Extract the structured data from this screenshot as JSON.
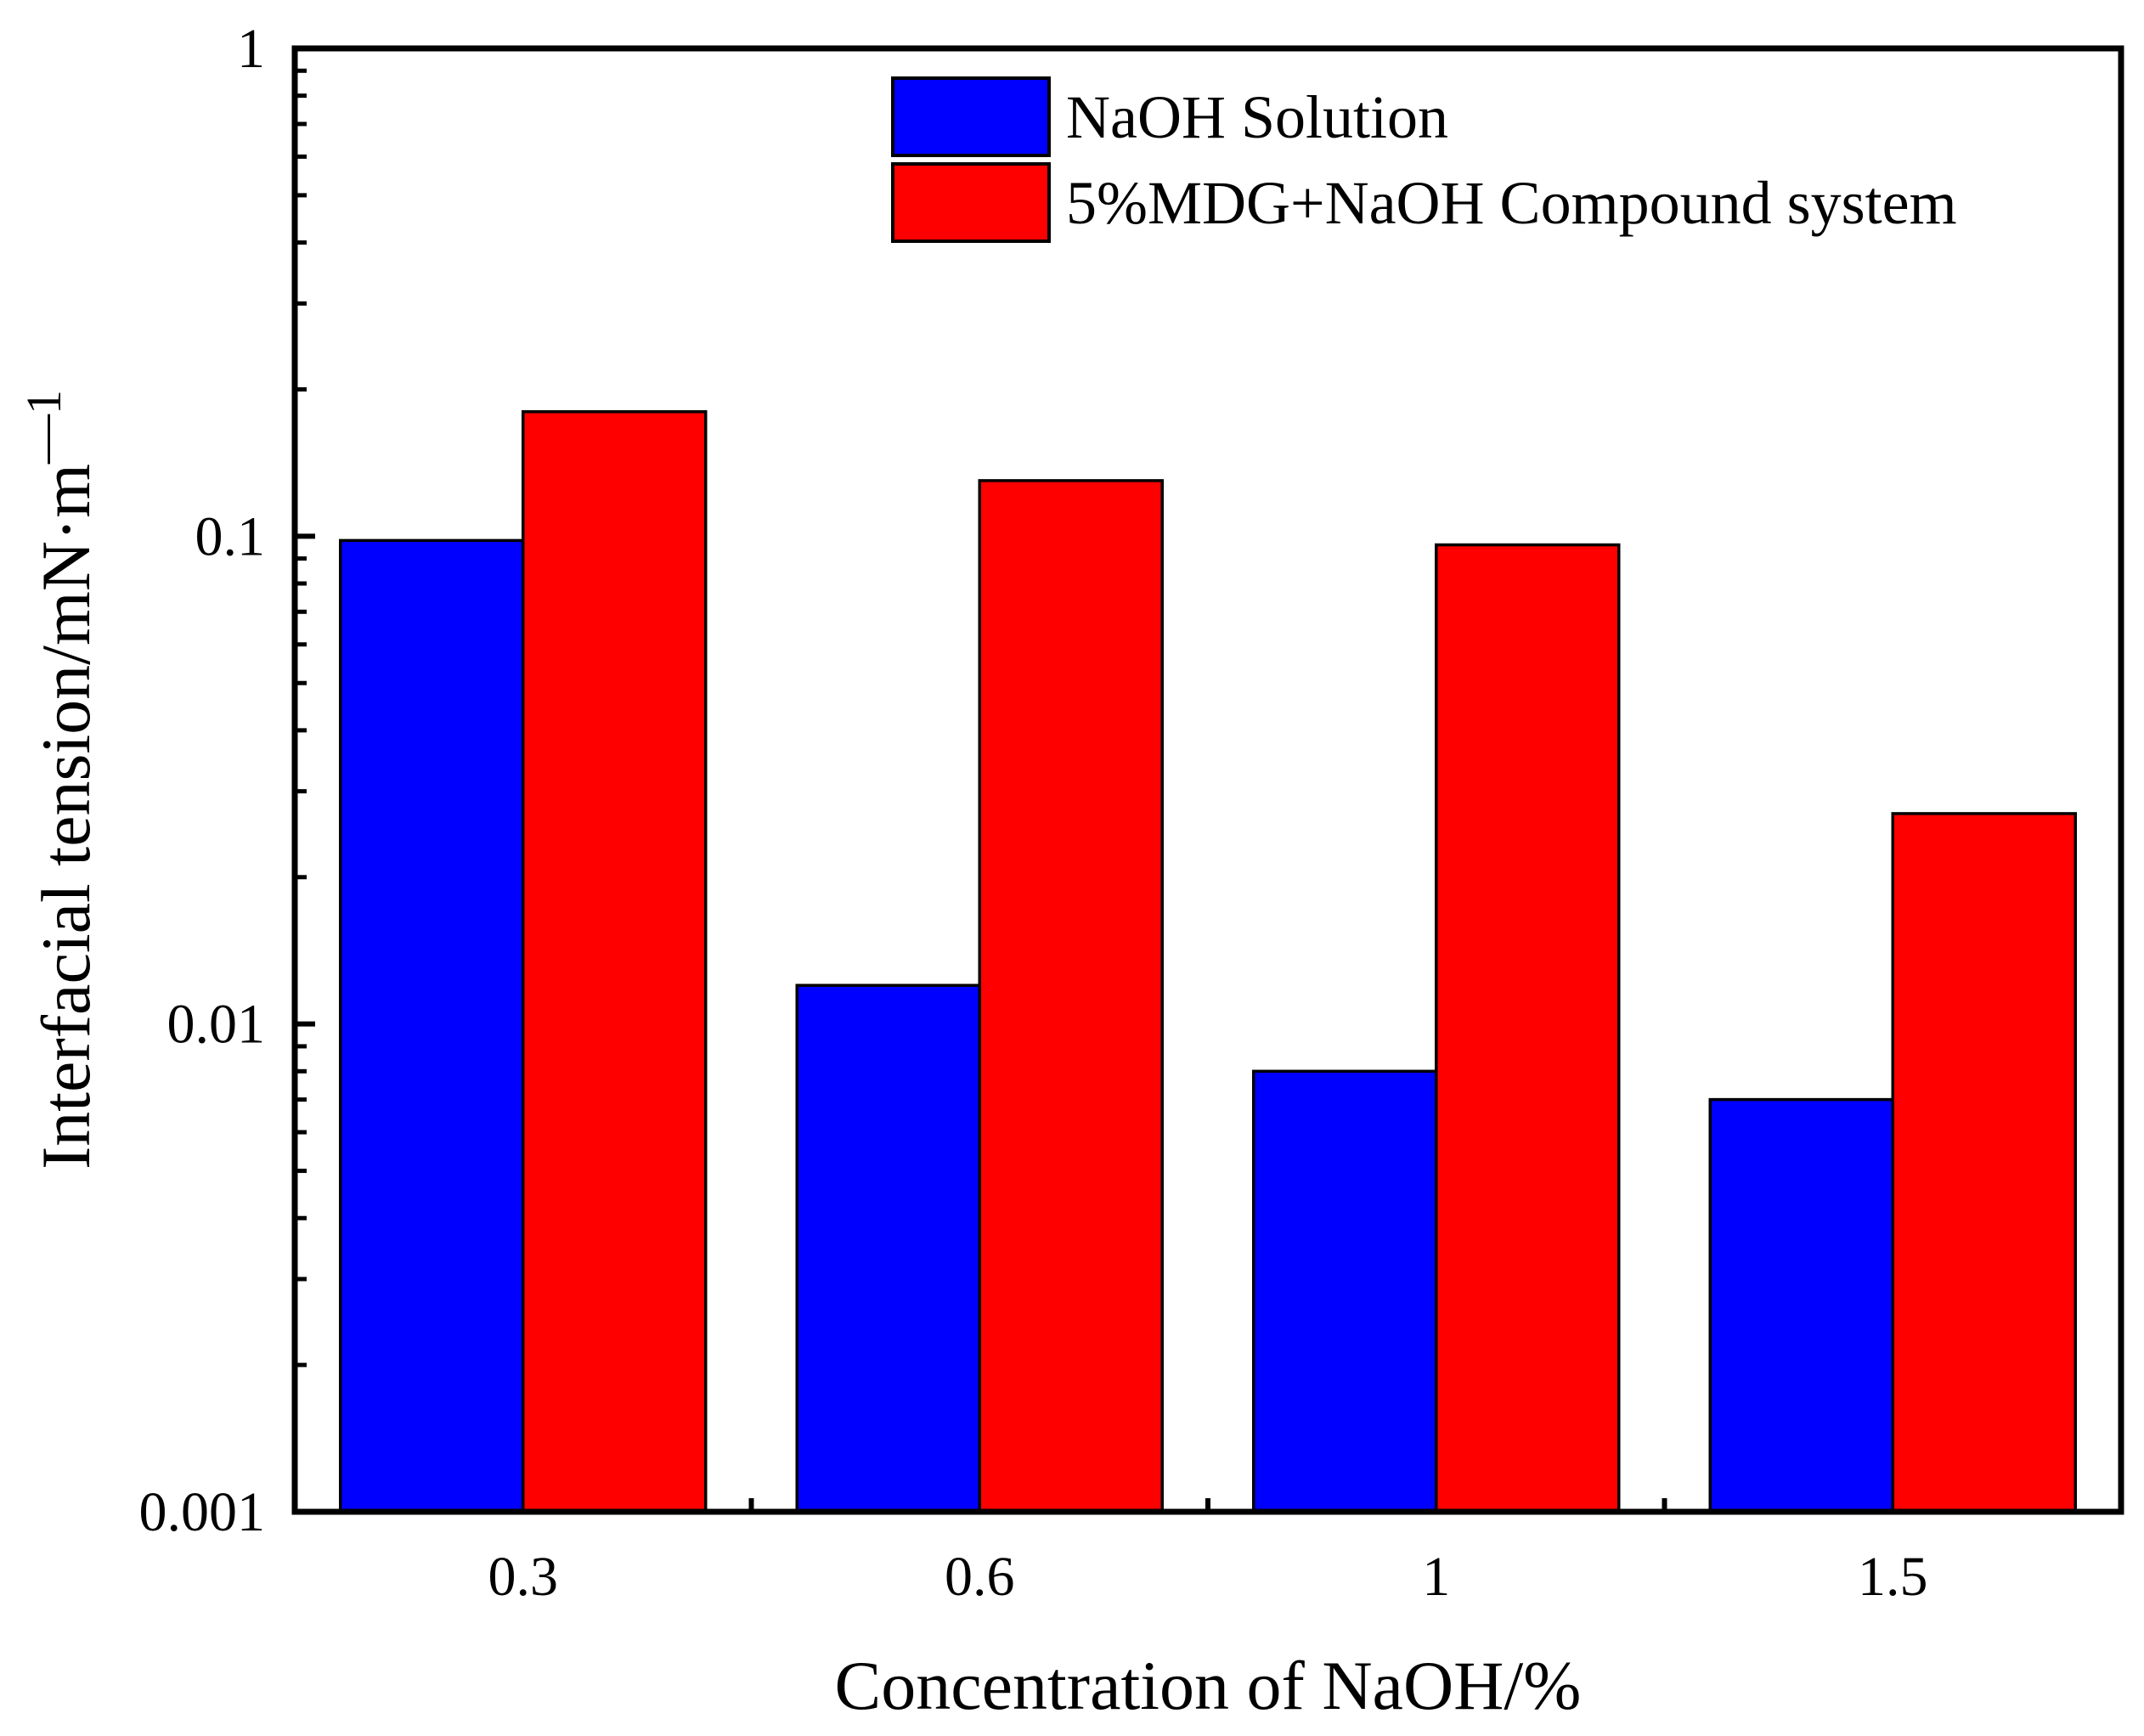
{
  "chart_data": {
    "type": "bar",
    "yscale": "log",
    "categories": [
      "0.3",
      "0.6",
      "1",
      "1.5"
    ],
    "series": [
      {
        "name": "NaOH Solution",
        "color": "#0000ff",
        "values": [
          0.098,
          0.012,
          0.008,
          0.007
        ]
      },
      {
        "name": "5%MDG+NaOH Compound system",
        "color": "#ff0000",
        "values": [
          0.18,
          0.13,
          0.096,
          0.027
        ]
      }
    ],
    "xlabel": "Concentration of NaOH/%",
    "ylabel": "Interfacial tension/mN·m",
    "ylabel_superscript": "—1",
    "ylim": [
      0.001,
      1
    ],
    "y_tick_labels": [
      "0.001",
      "0.01",
      "0.1",
      "1"
    ],
    "legend_position": "top-right",
    "grid": false
  }
}
